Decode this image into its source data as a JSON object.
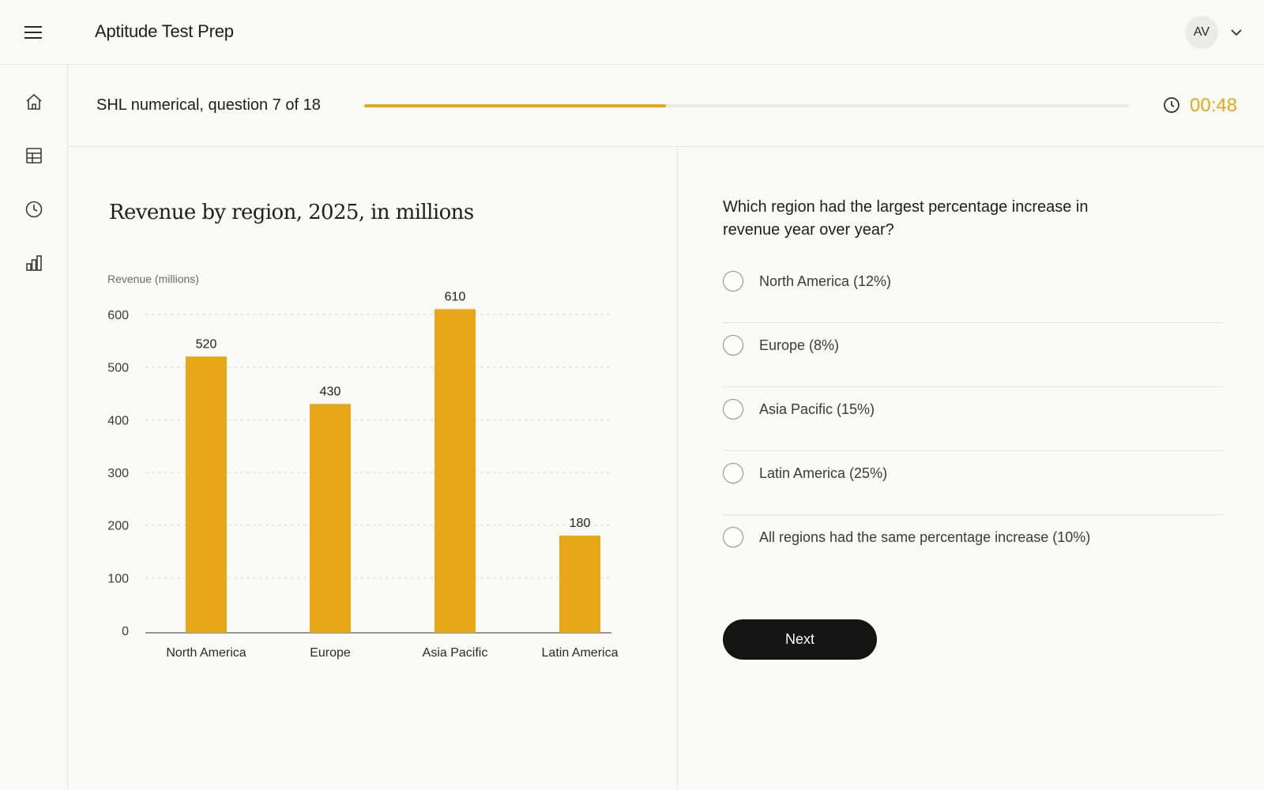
{
  "app": {
    "title": "Aptitude Test Prep",
    "user_initials": "AV"
  },
  "rail": {
    "items": [
      "home-icon",
      "table-icon",
      "history-icon",
      "stats-icon"
    ]
  },
  "progress": {
    "label": "SHL numerical, question 7 of 18",
    "current": 7,
    "total": 18,
    "fraction_complete": 0.395,
    "timer": "00:48"
  },
  "colors": {
    "accent": "#e6a817",
    "button": "#141414",
    "divider": "#e4e4e1"
  },
  "chart_data": {
    "type": "bar",
    "title": "Revenue by region, 2025, in millions",
    "ylabel": "Revenue (millions)",
    "xlabel": "",
    "categories": [
      "North America",
      "Europe",
      "Asia Pacific",
      "Latin America"
    ],
    "values": [
      520,
      430,
      610,
      180
    ],
    "data_labels": [
      "520",
      "430",
      "610",
      "180"
    ],
    "ylim": [
      0,
      600
    ],
    "yticks": [
      0,
      100,
      200,
      300,
      400,
      500,
      600
    ],
    "grid": "horizontal dashed",
    "color": "#e6a817"
  },
  "question": {
    "text": "Which region had the largest percentage increase in revenue year over year?",
    "options": [
      "North America (12%)",
      "Europe (8%)",
      "Asia Pacific (15%)",
      "Latin America (25%)",
      "All regions had the same percentage increase (10%)"
    ],
    "next_label": "Next"
  }
}
